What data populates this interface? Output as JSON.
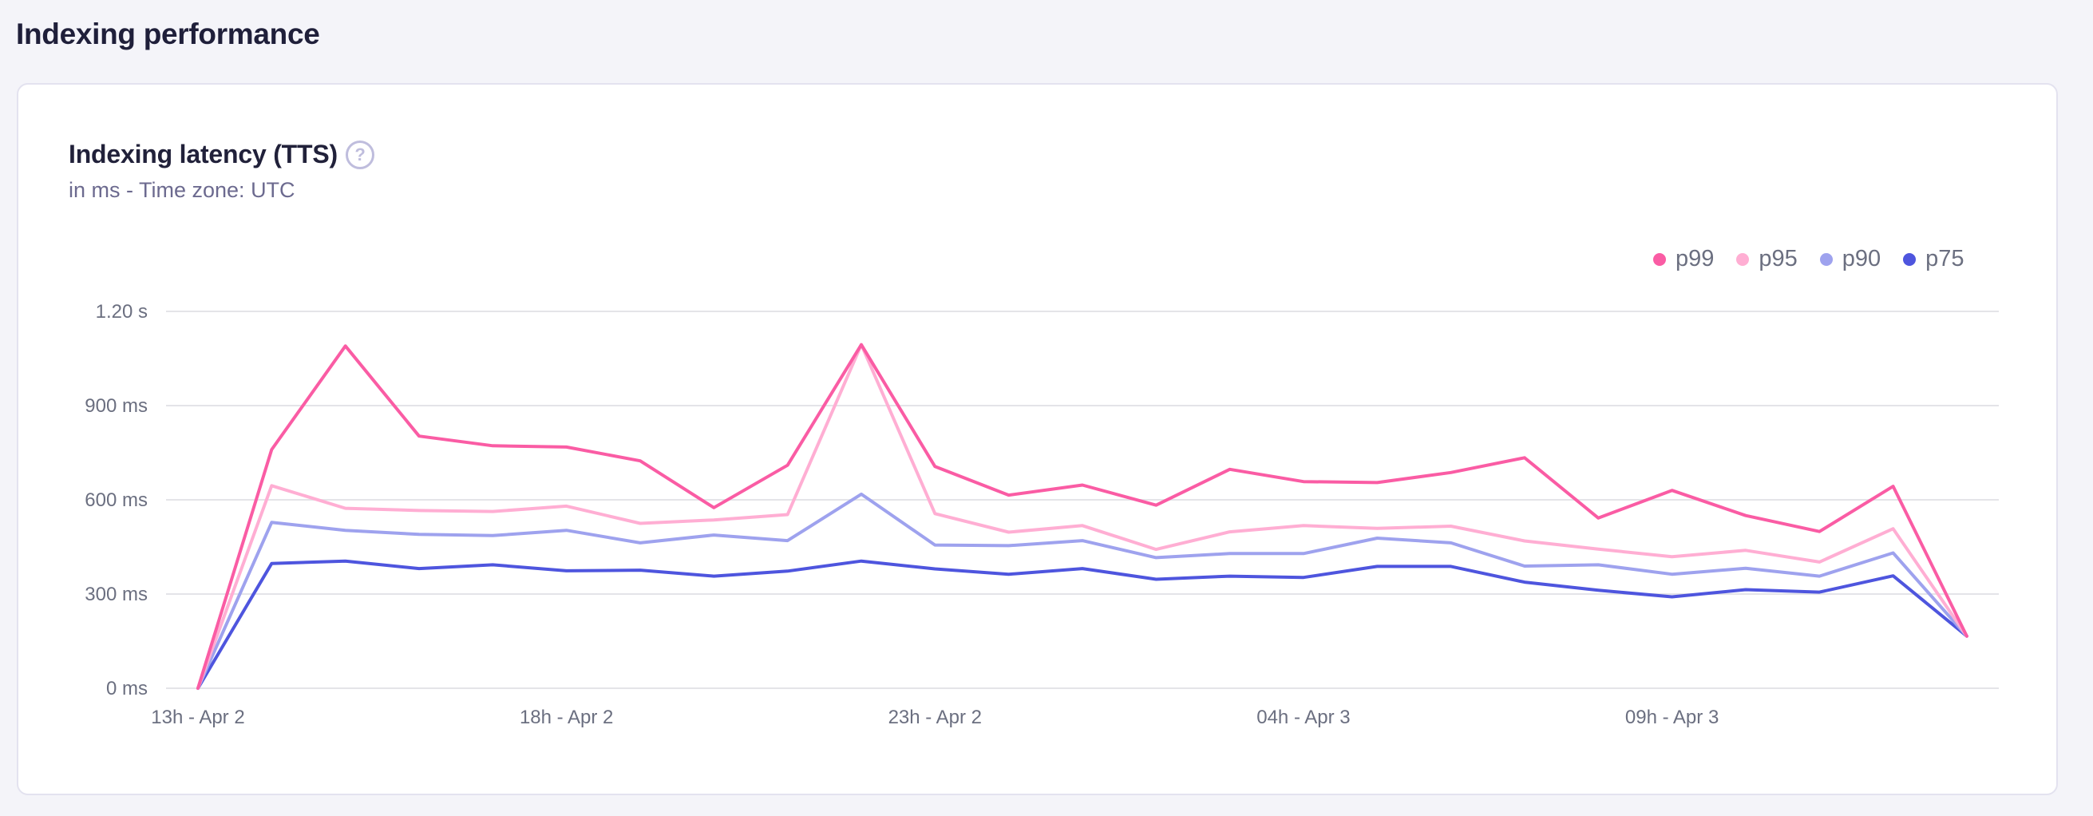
{
  "page": {
    "title": "Indexing performance"
  },
  "card": {
    "title": "Indexing latency (TTS)",
    "help_icon": "question-circle-icon",
    "subtitle": "in ms - Time zone: UTC"
  },
  "legend": [
    {
      "label": "p99",
      "color": "#fa5ca4"
    },
    {
      "label": "p95",
      "color": "#ffaed3"
    },
    {
      "label": "p90",
      "color": "#9ea2ee"
    },
    {
      "label": "p75",
      "color": "#4e55de"
    }
  ],
  "chart_data": {
    "type": "line",
    "title": "Indexing latency (TTS)",
    "subtitle": "in ms - Time zone: UTC",
    "xlabel": "",
    "ylabel": "",
    "unit": "ms",
    "ylim": [
      0,
      1200
    ],
    "y_ticks": [
      {
        "value": 0,
        "label": "0 ms"
      },
      {
        "value": 300,
        "label": "300 ms"
      },
      {
        "value": 600,
        "label": "600 ms"
      },
      {
        "value": 900,
        "label": "900 ms"
      },
      {
        "value": 1200,
        "label": "1.20 s"
      }
    ],
    "x_tick_labels": [
      {
        "index": 0,
        "label": "13h - Apr 2"
      },
      {
        "index": 5,
        "label": "18h - Apr 2"
      },
      {
        "index": 10,
        "label": "23h - Apr 2"
      },
      {
        "index": 15,
        "label": "04h - Apr 3"
      },
      {
        "index": 20,
        "label": "09h - Apr 3"
      }
    ],
    "x": [
      "13h Apr 2",
      "14h Apr 2",
      "15h Apr 2",
      "16h Apr 2",
      "17h Apr 2",
      "18h Apr 2",
      "19h Apr 2",
      "20h Apr 2",
      "21h Apr 2",
      "22h Apr 2",
      "23h Apr 2",
      "00h Apr 3",
      "01h Apr 3",
      "02h Apr 3",
      "03h Apr 3",
      "04h Apr 3",
      "05h Apr 3",
      "06h Apr 3",
      "07h Apr 3",
      "08h Apr 3",
      "09h Apr 3",
      "10h Apr 3",
      "11h Apr 3",
      "12h Apr 3",
      "13h Apr 3"
    ],
    "grid": true,
    "legend_position": "top-right",
    "series": [
      {
        "name": "p99",
        "color": "#fa5ca4",
        "values": [
          0,
          760,
          1090,
          803,
          772,
          768,
          724,
          575,
          710,
          1094,
          706,
          615,
          647,
          583,
          697,
          658,
          655,
          687,
          734,
          542,
          630,
          550,
          499,
          643,
          166
        ]
      },
      {
        "name": "p95",
        "color": "#ffaed3",
        "values": [
          0,
          645,
          573,
          566,
          563,
          580,
          525,
          536,
          553,
          1094,
          556,
          497,
          518,
          442,
          498,
          518,
          509,
          516,
          469,
          443,
          419,
          439,
          402,
          508,
          166
        ]
      },
      {
        "name": "p90",
        "color": "#9ea2ee",
        "values": [
          0,
          528,
          503,
          490,
          486,
          503,
          463,
          488,
          470,
          618,
          456,
          454,
          470,
          416,
          429,
          429,
          478,
          463,
          389,
          393,
          363,
          382,
          357,
          431,
          166
        ]
      },
      {
        "name": "p75",
        "color": "#4e55de",
        "values": [
          0,
          397,
          405,
          381,
          393,
          374,
          376,
          357,
          373,
          405,
          380,
          363,
          381,
          347,
          357,
          353,
          388,
          388,
          338,
          312,
          291,
          314,
          306,
          358,
          166
        ]
      }
    ]
  }
}
